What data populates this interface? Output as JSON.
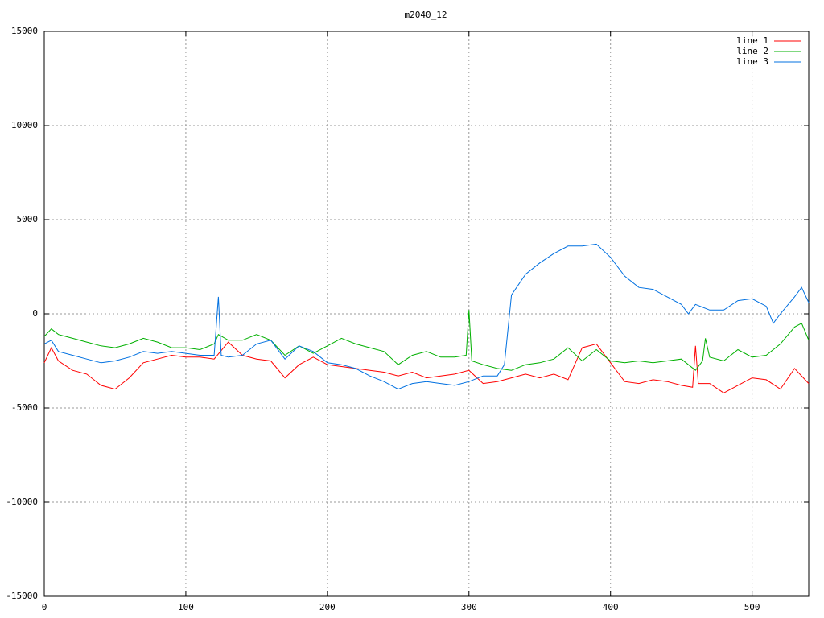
{
  "chart_data": {
    "type": "line",
    "title": "m2040_12",
    "xlim": [
      0,
      540
    ],
    "xticks": [
      0,
      100,
      200,
      300,
      400,
      500
    ],
    "ylim": [
      -15000,
      15000
    ],
    "yticks": [
      -15000,
      -10000,
      -5000,
      0,
      5000,
      10000,
      15000
    ],
    "grid": true,
    "legend": "top-right",
    "series": [
      {
        "name": "line 1",
        "color": "#ff0000",
        "x": [
          0,
          5,
          10,
          20,
          30,
          40,
          50,
          60,
          70,
          80,
          90,
          100,
          110,
          120,
          130,
          140,
          150,
          160,
          170,
          180,
          190,
          200,
          210,
          220,
          230,
          240,
          250,
          260,
          270,
          280,
          290,
          300,
          310,
          320,
          330,
          340,
          350,
          360,
          370,
          380,
          390,
          400,
          410,
          420,
          430,
          440,
          450,
          458,
          460,
          462,
          470,
          480,
          490,
          500,
          510,
          520,
          530,
          540
        ],
        "values": [
          -2600,
          -1800,
          -2500,
          -3000,
          -3200,
          -3800,
          -4000,
          -3400,
          -2600,
          -2400,
          -2200,
          -2300,
          -2300,
          -2400,
          -1500,
          -2200,
          -2400,
          -2500,
          -3400,
          -2700,
          -2300,
          -2700,
          -2800,
          -2900,
          -3000,
          -3100,
          -3300,
          -3100,
          -3400,
          -3300,
          -3200,
          -3000,
          -3700,
          -3600,
          -3400,
          -3200,
          -3400,
          -3200,
          -3500,
          -1800,
          -1600,
          -2600,
          -3600,
          -3700,
          -3500,
          -3600,
          -3800,
          -3900,
          -1700,
          -3700,
          -3700,
          -4200,
          -3800,
          -3400,
          -3500,
          -4000,
          -2900,
          -3700
        ]
      },
      {
        "name": "line 2",
        "color": "#00b000",
        "x": [
          0,
          5,
          10,
          20,
          30,
          40,
          50,
          60,
          70,
          80,
          90,
          100,
          110,
          120,
          123,
          130,
          140,
          150,
          160,
          170,
          180,
          190,
          200,
          210,
          220,
          230,
          240,
          250,
          260,
          270,
          280,
          290,
          298,
          300,
          302,
          310,
          320,
          330,
          340,
          350,
          360,
          370,
          380,
          390,
          400,
          410,
          420,
          430,
          440,
          450,
          460,
          465,
          467,
          470,
          480,
          490,
          500,
          510,
          520,
          530,
          535,
          540
        ],
        "values": [
          -1200,
          -800,
          -1100,
          -1300,
          -1500,
          -1700,
          -1800,
          -1600,
          -1300,
          -1500,
          -1800,
          -1800,
          -1900,
          -1600,
          -1100,
          -1400,
          -1400,
          -1100,
          -1400,
          -2200,
          -1700,
          -2100,
          -1700,
          -1300,
          -1600,
          -1800,
          -2000,
          -2700,
          -2200,
          -2000,
          -2300,
          -2300,
          -2200,
          200,
          -2500,
          -2700,
          -2900,
          -3000,
          -2700,
          -2600,
          -2400,
          -1800,
          -2500,
          -1900,
          -2500,
          -2600,
          -2500,
          -2600,
          -2500,
          -2400,
          -3000,
          -2500,
          -1300,
          -2300,
          -2500,
          -1900,
          -2300,
          -2200,
          -1600,
          -700,
          -500,
          -1400
        ]
      },
      {
        "name": "line 3",
        "color": "#0070e0",
        "x": [
          0,
          5,
          10,
          20,
          30,
          40,
          50,
          60,
          70,
          80,
          90,
          100,
          110,
          120,
          123,
          125,
          130,
          140,
          150,
          160,
          170,
          180,
          190,
          200,
          210,
          220,
          230,
          240,
          250,
          260,
          270,
          280,
          290,
          300,
          310,
          320,
          325,
          330,
          340,
          350,
          360,
          370,
          380,
          390,
          400,
          410,
          420,
          430,
          440,
          450,
          455,
          460,
          470,
          480,
          490,
          500,
          510,
          515,
          520,
          530,
          535,
          540
        ],
        "values": [
          -1600,
          -1400,
          -2000,
          -2200,
          -2400,
          -2600,
          -2500,
          -2300,
          -2000,
          -2100,
          -2000,
          -2100,
          -2200,
          -2200,
          900,
          -2200,
          -2300,
          -2200,
          -1600,
          -1400,
          -2400,
          -1700,
          -2000,
          -2600,
          -2700,
          -2900,
          -3300,
          -3600,
          -4000,
          -3700,
          -3600,
          -3700,
          -3800,
          -3600,
          -3300,
          -3300,
          -2700,
          1000,
          2100,
          2700,
          3200,
          3600,
          3600,
          3700,
          3000,
          2000,
          1400,
          1300,
          900,
          500,
          0,
          500,
          200,
          200,
          700,
          800,
          400,
          -500,
          0,
          900,
          1400,
          600
        ]
      }
    ]
  }
}
